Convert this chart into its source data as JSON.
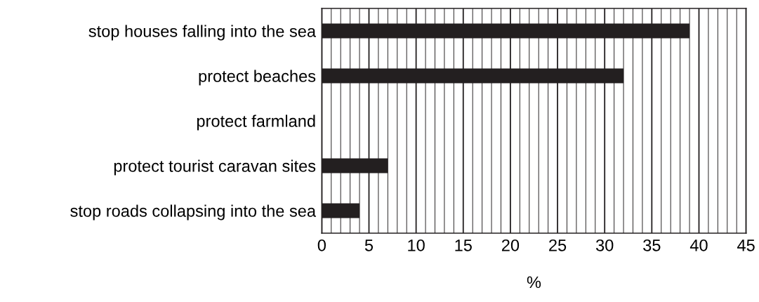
{
  "chart_data": {
    "type": "bar",
    "orientation": "horizontal",
    "xlabel": "%",
    "categories": [
      "stop houses falling into the sea",
      "protect beaches",
      "protect farmland",
      "protect tourist caravan sites",
      "stop roads collapsing into the sea"
    ],
    "values": [
      39,
      32,
      null,
      7,
      4
    ],
    "color": "#231f20",
    "xlim": [
      0,
      45
    ],
    "xticks": [
      0,
      {
        "value": 1,
        "label": null
      },
      {
        "value": 2,
        "label": null
      },
      {
        "value": 3,
        "label": null
      },
      {
        "value": 4,
        "label": null
      },
      5,
      {
        "value": 6,
        "label": null
      },
      {
        "value": 7,
        "label": null
      },
      {
        "value": 8,
        "label": null
      },
      {
        "value": 9,
        "label": null
      },
      10,
      {
        "value": 11,
        "label": null
      },
      {
        "value": 12,
        "label": null
      },
      {
        "value": 13,
        "label": null
      },
      {
        "value": 14,
        "label": null
      },
      15,
      {
        "value": 16,
        "label": null
      },
      {
        "value": 17,
        "label": null
      },
      {
        "value": 18,
        "label": null
      },
      {
        "value": 19,
        "label": null
      },
      20,
      {
        "value": 21,
        "label": null
      },
      {
        "value": 22,
        "label": null
      },
      {
        "value": 23,
        "label": null
      },
      {
        "value": 24,
        "label": null
      },
      25,
      {
        "value": 26,
        "label": null
      },
      {
        "value": 27,
        "label": null
      },
      {
        "value": 28,
        "label": null
      },
      {
        "value": 29,
        "label": null
      },
      30,
      {
        "value": 31,
        "label": null
      },
      {
        "value": 32,
        "label": null
      },
      {
        "value": 33,
        "label": null
      },
      {
        "value": 34,
        "label": null
      },
      35,
      {
        "value": 36,
        "label": null
      },
      {
        "value": 37,
        "label": null
      },
      {
        "value": 38,
        "label": null
      },
      {
        "value": 39,
        "label": null
      },
      40,
      {
        "value": 41,
        "label": null
      },
      {
        "value": 42,
        "label": null
      },
      {
        "value": 43,
        "label": null
      },
      {
        "value": 44,
        "label": null
      },
      45
    ],
    "grid": "x"
  }
}
